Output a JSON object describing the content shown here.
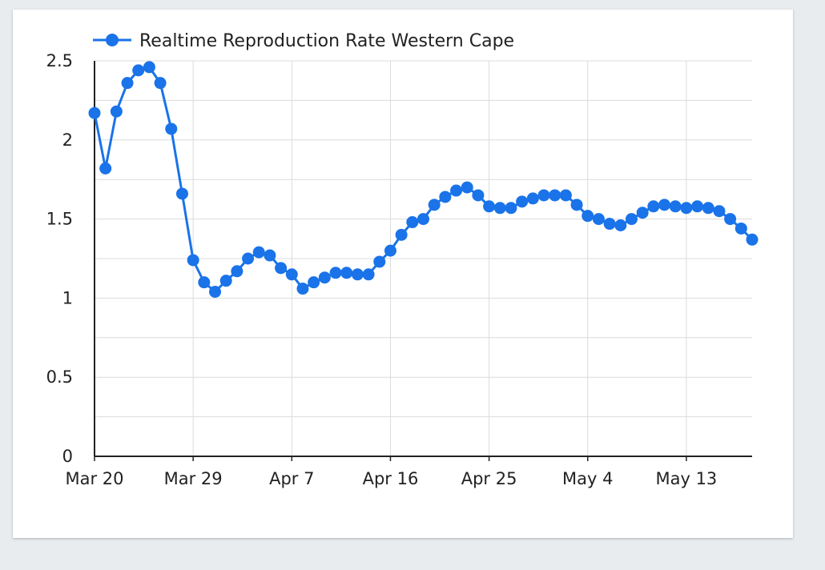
{
  "chart_data": {
    "type": "line",
    "title": "",
    "xlabel": "",
    "ylabel": "",
    "ylim": [
      0,
      2.5
    ],
    "y_ticks": [
      "0",
      "0.5",
      "1",
      "1.5",
      "2",
      "2.5"
    ],
    "x_tick_labels": [
      "Mar 20",
      "Mar 29",
      "Apr 7",
      "Apr 16",
      "Apr 25",
      "May 4",
      "May 13"
    ],
    "x_start_date": "2020-03-20",
    "grid": true,
    "legend_position": "top-left",
    "color": "#1a73e8",
    "series": [
      {
        "name": "Realtime Reproduction Rate Western Cape",
        "x": [
          "Mar 20",
          "Mar 21",
          "Mar 22",
          "Mar 23",
          "Mar 24",
          "Mar 25",
          "Mar 26",
          "Mar 27",
          "Mar 28",
          "Mar 29",
          "Mar 30",
          "Mar 31",
          "Apr 1",
          "Apr 2",
          "Apr 3",
          "Apr 4",
          "Apr 5",
          "Apr 6",
          "Apr 7",
          "Apr 8",
          "Apr 9",
          "Apr 10",
          "Apr 11",
          "Apr 12",
          "Apr 13",
          "Apr 14",
          "Apr 15",
          "Apr 16",
          "Apr 17",
          "Apr 18",
          "Apr 19",
          "Apr 20",
          "Apr 21",
          "Apr 22",
          "Apr 23",
          "Apr 24",
          "Apr 25",
          "Apr 26",
          "Apr 27",
          "Apr 28",
          "Apr 29",
          "Apr 30",
          "May 1",
          "May 2",
          "May 3",
          "May 4",
          "May 5",
          "May 6",
          "May 7",
          "May 8",
          "May 9",
          "May 10",
          "May 11",
          "May 12",
          "May 13",
          "May 14",
          "May 15",
          "May 16",
          "May 17",
          "May 18",
          "May 19"
        ],
        "values": [
          2.17,
          1.82,
          2.18,
          2.36,
          2.44,
          2.46,
          2.36,
          2.07,
          1.66,
          1.24,
          1.1,
          1.04,
          1.11,
          1.17,
          1.25,
          1.29,
          1.27,
          1.19,
          1.15,
          1.06,
          1.1,
          1.13,
          1.16,
          1.16,
          1.15,
          1.15,
          1.23,
          1.3,
          1.4,
          1.48,
          1.5,
          1.59,
          1.64,
          1.68,
          1.7,
          1.65,
          1.58,
          1.57,
          1.57,
          1.61,
          1.63,
          1.65,
          1.65,
          1.65,
          1.59,
          1.52,
          1.5,
          1.47,
          1.46,
          1.5,
          1.54,
          1.58,
          1.59,
          1.58,
          1.57,
          1.58,
          1.57,
          1.55,
          1.5,
          1.44,
          1.37
        ]
      }
    ]
  }
}
